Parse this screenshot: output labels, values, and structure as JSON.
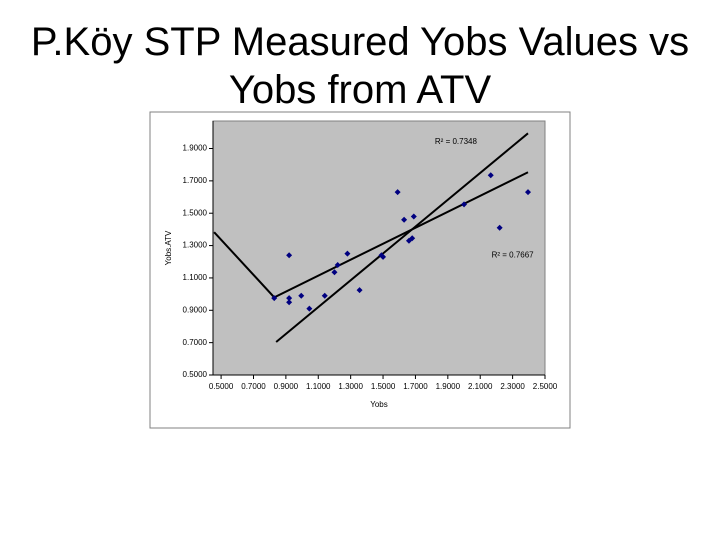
{
  "chart_data": {
    "type": "scatter",
    "title_lines": [
      "P.Köy STP Measured Yobs Values vs",
      "Yobs from ATV"
    ],
    "x_label": "Yobs",
    "y_label": "Yobs.ATV",
    "xlim": [
      0.45,
      2.5
    ],
    "ylim": [
      0.5,
      2.07
    ],
    "xticks": [
      {
        "value": 0.5,
        "label": "0.5000"
      },
      {
        "value": 0.7,
        "label": "0.7000"
      },
      {
        "value": 0.9,
        "label": "0.9000"
      },
      {
        "value": 1.1,
        "label": "1.1000"
      },
      {
        "value": 1.3,
        "label": "1.3000"
      },
      {
        "value": 1.5,
        "label": "1.5000"
      },
      {
        "value": 1.7,
        "label": "1.7000"
      },
      {
        "value": 1.9,
        "label": "1.9000"
      },
      {
        "value": 2.1,
        "label": "2.1000"
      },
      {
        "value": 2.3,
        "label": "2.3000"
      },
      {
        "value": 2.5,
        "label": "2.5000"
      }
    ],
    "yticks": [
      {
        "value": 0.5,
        "label": "0.5000"
      },
      {
        "value": 0.7,
        "label": "0.7000"
      },
      {
        "value": 0.9,
        "label": "0.9000"
      },
      {
        "value": 1.1,
        "label": "1.1000"
      },
      {
        "value": 1.3,
        "label": "1.3000"
      },
      {
        "value": 1.5,
        "label": "1.5000"
      },
      {
        "value": 1.7,
        "label": "1.7000"
      },
      {
        "value": 1.9,
        "label": "1.9000"
      }
    ],
    "color": "#000080",
    "x": [
      0.828,
      0.92,
      0.92,
      0.995,
      0.92,
      1.045,
      1.14,
      1.2,
      1.22,
      1.28,
      1.355,
      1.49,
      1.5,
      1.59,
      1.63,
      1.69,
      1.68,
      1.66,
      2.0,
      2.165,
      2.22,
      2.395
    ],
    "y": [
      0.975,
      0.975,
      0.95,
      0.99,
      1.24,
      0.91,
      0.99,
      1.135,
      1.18,
      1.25,
      1.025,
      1.24,
      1.23,
      1.63,
      1.46,
      1.48,
      1.345,
      1.33,
      1.555,
      1.735,
      1.41,
      1.63
    ],
    "trendlines": [
      {
        "label": "R² = 0.7348",
        "label_x": 1.95,
        "label_y": 1.94,
        "x": [
          0.84,
          2.395
        ],
        "y": [
          0.704,
          1.994
        ]
      },
      {
        "label": "R² = 0.7667",
        "label_x": 2.3,
        "label_y": 1.24,
        "x": [
          0.457,
          0.828,
          2.395
        ],
        "y": [
          1.383,
          0.98,
          1.753
        ]
      }
    ]
  }
}
